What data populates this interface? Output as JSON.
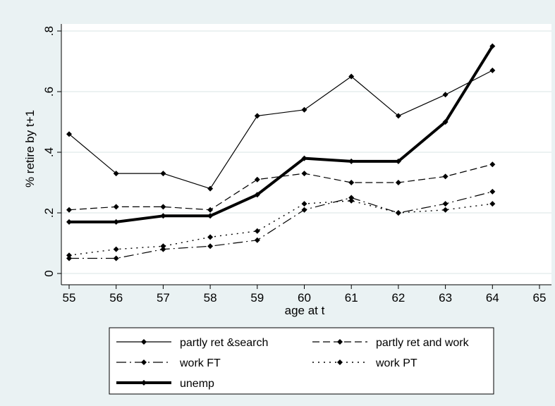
{
  "chart_data": {
    "type": "line",
    "title": "",
    "xlabel": "age at t",
    "ylabel": "% retire by t+1",
    "xlim": [
      55,
      65
    ],
    "ylim": [
      0,
      0.8
    ],
    "x_ticks": [
      55,
      56,
      57,
      58,
      59,
      60,
      61,
      62,
      63,
      64,
      65
    ],
    "y_ticks": [
      0,
      0.2,
      0.4,
      0.6,
      0.8
    ],
    "y_tick_labels": [
      "0",
      ".2",
      ".4",
      ".6",
      ".8"
    ],
    "grid": "horizontal",
    "legend_position": "bottom",
    "x": [
      55,
      56,
      57,
      58,
      59,
      60,
      61,
      62,
      63,
      64
    ],
    "series": [
      {
        "name": "partly ret &search",
        "style": "solid-thin",
        "values": [
          0.46,
          0.33,
          0.33,
          0.28,
          0.52,
          0.54,
          0.65,
          0.52,
          0.59,
          0.67
        ]
      },
      {
        "name": "partly ret and work",
        "style": "dashed",
        "values": [
          0.21,
          0.22,
          0.22,
          0.21,
          0.31,
          0.33,
          0.3,
          0.3,
          0.32,
          0.36
        ]
      },
      {
        "name": "work FT",
        "style": "long-dash-dot",
        "values": [
          0.05,
          0.05,
          0.08,
          0.09,
          0.11,
          0.21,
          0.25,
          0.2,
          0.23,
          0.27
        ]
      },
      {
        "name": "work PT",
        "style": "dotted",
        "values": [
          0.06,
          0.08,
          0.09,
          0.12,
          0.14,
          0.23,
          0.24,
          0.2,
          0.21,
          0.23
        ]
      },
      {
        "name": "unemp",
        "style": "solid-thick",
        "values": [
          0.17,
          0.17,
          0.19,
          0.19,
          0.26,
          0.38,
          0.37,
          0.37,
          0.5,
          0.75
        ]
      }
    ]
  },
  "colors": {
    "outer_background": "#eaf2f3",
    "plot_background": "#ffffff",
    "gridline": "#e6eeee",
    "series": "#000000"
  }
}
